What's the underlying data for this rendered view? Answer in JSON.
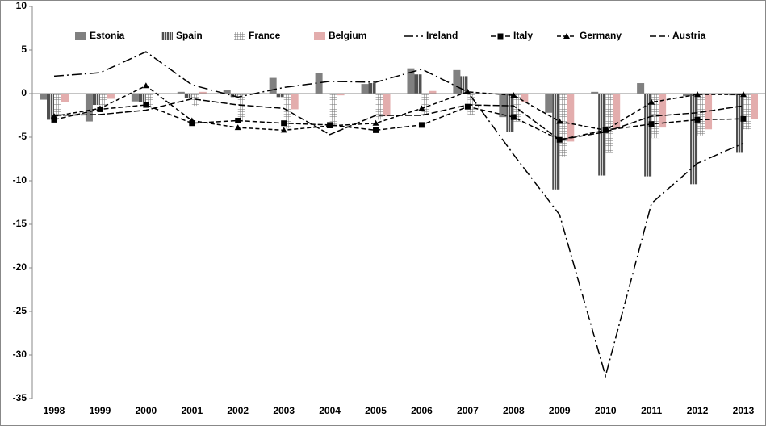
{
  "chart_data": {
    "type": "bar-line",
    "categories": [
      "1998",
      "1999",
      "2000",
      "2001",
      "2002",
      "2003",
      "2004",
      "2005",
      "2006",
      "2007",
      "2008",
      "2009",
      "2010",
      "2011",
      "2012",
      "2013"
    ],
    "ylim": [
      -35,
      10
    ],
    "yticks": [
      -35,
      -30,
      -25,
      -20,
      -15,
      -10,
      -5,
      0,
      5,
      10
    ],
    "series": [
      {
        "name": "Estonia",
        "kind": "bar",
        "pattern": "solid",
        "color": "#808080",
        "values": [
          -0.7,
          -3.2,
          -0.9,
          0.2,
          0.4,
          1.8,
          2.4,
          1.1,
          2.9,
          2.7,
          -2.7,
          -2.2,
          0.2,
          1.2,
          -0.3,
          -0.2
        ]
      },
      {
        "name": "Spain",
        "kind": "bar",
        "pattern": "vertical",
        "color": "#606060",
        "values": [
          -3.0,
          -1.3,
          -1.0,
          -0.5,
          -0.4,
          -0.4,
          0,
          1.2,
          2.2,
          2.0,
          -4.4,
          -11.0,
          -9.4,
          -9.5,
          -10.4,
          -6.8
        ]
      },
      {
        "name": "France",
        "kind": "bar",
        "pattern": "grid",
        "color": "#909090",
        "values": [
          -2.6,
          -1.6,
          -1.5,
          -1.4,
          -3.1,
          -4.0,
          -3.6,
          -3.0,
          -2.4,
          -2.5,
          -3.2,
          -7.2,
          -6.8,
          -5.1,
          -4.8,
          -4.1
        ]
      },
      {
        "name": "Belgium",
        "kind": "bar",
        "pattern": "solid",
        "color": "#e3adad",
        "values": [
          -1.0,
          -0.6,
          0,
          0.2,
          0,
          -1.8,
          -0.2,
          -2.6,
          0.3,
          0,
          -1.0,
          -5.5,
          -4.0,
          -3.9,
          -4.1,
          -2.9
        ]
      },
      {
        "name": "Ireland",
        "kind": "line",
        "dash": "12,4,2,4",
        "marker": "none",
        "color": "#000000",
        "values": [
          2.0,
          2.4,
          4.8,
          1.0,
          -0.4,
          0.7,
          1.4,
          1.3,
          2.8,
          0.2,
          -7.0,
          -13.9,
          -32.4,
          -12.6,
          -8.0,
          -5.7
        ]
      },
      {
        "name": "Italy",
        "kind": "line",
        "dash": "6,3",
        "marker": "square",
        "color": "#000000",
        "values": [
          -3.0,
          -1.8,
          -1.3,
          -3.4,
          -3.1,
          -3.4,
          -3.6,
          -4.2,
          -3.6,
          -1.5,
          -2.7,
          -5.3,
          -4.2,
          -3.5,
          -3.0,
          -2.9
        ]
      },
      {
        "name": "Germany",
        "kind": "line",
        "dash": "5,3",
        "marker": "triangle",
        "color": "#000000",
        "values": [
          -2.6,
          -1.7,
          0.9,
          -3.1,
          -3.9,
          -4.2,
          -3.7,
          -3.4,
          -1.7,
          0.2,
          -0.2,
          -3.2,
          -4.2,
          -1.0,
          -0.1,
          -0.1
        ]
      },
      {
        "name": "Austria",
        "kind": "line",
        "dash": "8,3",
        "marker": "none",
        "color": "#000000",
        "values": [
          -2.5,
          -2.4,
          -1.9,
          -0.6,
          -1.3,
          -1.7,
          -4.7,
          -2.5,
          -2.5,
          -1.3,
          -1.4,
          -5.3,
          -4.4,
          -2.6,
          -2.2,
          -1.4
        ]
      }
    ]
  }
}
